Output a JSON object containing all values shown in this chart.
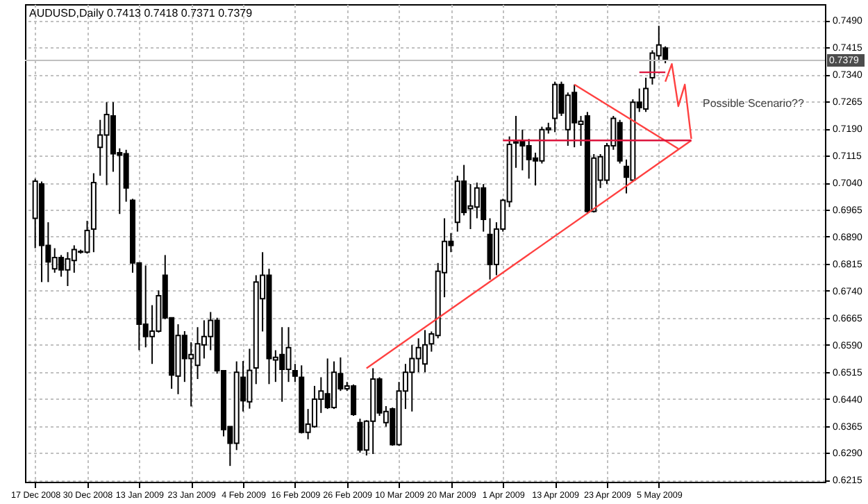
{
  "chart_data": {
    "type": "candlestick",
    "title": "AUDUSD,Daily  0.7413 0.7418 0.7371 0.7379",
    "color": "#000000",
    "categories": [
      "17 Dec 2008",
      null,
      null,
      null,
      null,
      null,
      null,
      null,
      "30 Dec 2008",
      null,
      null,
      null,
      null,
      null,
      null,
      null,
      "13 Jan 2009",
      null,
      null,
      null,
      null,
      null,
      null,
      null,
      "23 Jan 2009",
      null,
      null,
      null,
      null,
      null,
      null,
      null,
      "4 Feb 2009",
      null,
      null,
      null,
      null,
      null,
      null,
      null,
      "16 Feb 2009",
      null,
      null,
      null,
      null,
      null,
      null,
      null,
      "26 Feb 2009",
      null,
      null,
      null,
      null,
      null,
      null,
      null,
      "10 Mar 2009",
      null,
      null,
      null,
      null,
      null,
      null,
      null,
      "20 Mar 2009",
      null,
      null,
      null,
      null,
      null,
      null,
      null,
      "1 Apr 2009",
      null,
      null,
      null,
      null,
      null,
      null,
      null,
      "13 Apr 2009",
      null,
      null,
      null,
      null,
      null,
      null,
      null,
      "23 Apr 2009",
      null,
      null,
      null,
      null,
      null,
      null,
      null,
      "5 May 2009",
      null,
      null,
      null,
      null,
      null,
      null,
      null,
      null,
      null,
      null,
      null,
      null,
      null,
      null,
      null,
      null,
      null,
      null,
      null,
      null,
      null,
      null,
      null,
      null
    ],
    "ohlc": [
      [
        0.6941,
        0.7051,
        0.6858,
        0.7044
      ],
      [
        0.7036,
        0.7043,
        0.6764,
        0.6866
      ],
      [
        0.6866,
        0.693,
        0.6764,
        0.682
      ],
      [
        0.6801,
        0.6858,
        0.679,
        0.6832
      ],
      [
        0.6832,
        0.6839,
        0.6779,
        0.6798
      ],
      [
        0.6798,
        0.6847,
        0.6753,
        0.6828
      ],
      [
        0.6824,
        0.6866,
        0.679,
        0.6854
      ],
      [
        0.6847,
        0.6854,
        0.6843,
        0.6849
      ],
      [
        0.6847,
        0.6934,
        0.6843,
        0.6907
      ],
      [
        0.6911,
        0.7066,
        0.6847,
        0.704
      ],
      [
        0.7138,
        0.7214,
        0.7059,
        0.7172
      ],
      [
        0.7172,
        0.7263,
        0.7033,
        0.7229
      ],
      [
        0.7225,
        0.7263,
        0.707,
        0.712
      ],
      [
        0.7123,
        0.7135,
        0.6953,
        0.7116
      ],
      [
        0.712,
        0.7131,
        0.6987,
        0.7025
      ],
      [
        0.6991,
        0.6995,
        0.679,
        0.6817
      ],
      [
        0.6817,
        0.6817,
        0.6575,
        0.6647
      ],
      [
        0.6647,
        0.681,
        0.6583,
        0.6613
      ],
      [
        0.6613,
        0.67,
        0.6537,
        0.6628
      ],
      [
        0.6628,
        0.6741,
        0.6624,
        0.6726
      ],
      [
        0.6783,
        0.6839,
        0.6661,
        0.6665
      ],
      [
        0.6665,
        0.6665,
        0.6468,
        0.6506
      ],
      [
        0.6503,
        0.6647,
        0.6453,
        0.6616
      ],
      [
        0.6616,
        0.6628,
        0.6487,
        0.6552
      ],
      [
        0.6552,
        0.6597,
        0.6419,
        0.6563
      ],
      [
        0.6533,
        0.6639,
        0.6495,
        0.6593
      ],
      [
        0.659,
        0.6658,
        0.6552,
        0.6613
      ],
      [
        0.6613,
        0.6681,
        0.6575,
        0.6658
      ],
      [
        0.6658,
        0.6665,
        0.651,
        0.6518
      ],
      [
        0.6518,
        0.6518,
        0.6336,
        0.6355
      ],
      [
        0.6363,
        0.6363,
        0.6254,
        0.6317
      ],
      [
        0.6317,
        0.6544,
        0.6298,
        0.6514
      ],
      [
        0.65,
        0.6545,
        0.6405,
        0.6435
      ],
      [
        0.6432,
        0.6579,
        0.6413,
        0.6519
      ],
      [
        0.6526,
        0.6783,
        0.6481,
        0.6764
      ],
      [
        0.6718,
        0.6847,
        0.6627,
        0.6783
      ],
      [
        0.6783,
        0.6801,
        0.6481,
        0.6552
      ],
      [
        0.6548,
        0.6575,
        0.6487,
        0.6555
      ],
      [
        0.6563,
        0.6639,
        0.6432,
        0.6522
      ],
      [
        0.6522,
        0.6639,
        0.6487,
        0.6582
      ],
      [
        0.6518,
        0.6537,
        0.6487,
        0.6503
      ],
      [
        0.65,
        0.6533,
        0.6344,
        0.6347
      ],
      [
        0.6347,
        0.6412,
        0.6328,
        0.637
      ],
      [
        0.6363,
        0.6476,
        0.636,
        0.6439
      ],
      [
        0.6439,
        0.65,
        0.6401,
        0.6462
      ],
      [
        0.6454,
        0.6552,
        0.6412,
        0.6416
      ],
      [
        0.6416,
        0.6544,
        0.6412,
        0.6514
      ],
      [
        0.651,
        0.6555,
        0.6462,
        0.6468
      ],
      [
        0.6468,
        0.6487,
        0.6462,
        0.6476
      ],
      [
        0.6476,
        0.648,
        0.6393,
        0.6397
      ],
      [
        0.6374,
        0.6385,
        0.6291,
        0.6298
      ],
      [
        0.6298,
        0.6381,
        0.6283,
        0.6378
      ],
      [
        0.6378,
        0.6525,
        0.6287,
        0.6495
      ],
      [
        0.6495,
        0.65,
        0.6393,
        0.6401
      ],
      [
        0.6374,
        0.642,
        0.6363,
        0.6405
      ],
      [
        0.6412,
        0.6416,
        0.631,
        0.6313
      ],
      [
        0.6313,
        0.6487,
        0.631,
        0.6462
      ],
      [
        0.6462,
        0.6537,
        0.6412,
        0.6514
      ],
      [
        0.6514,
        0.659,
        0.6405,
        0.6552
      ],
      [
        0.6552,
        0.6608,
        0.6514,
        0.6582
      ],
      [
        0.6537,
        0.6631,
        0.6514,
        0.659
      ],
      [
        0.6593,
        0.6627,
        0.6571,
        0.662
      ],
      [
        0.6616,
        0.6817,
        0.6608,
        0.6794
      ],
      [
        0.679,
        0.6941,
        0.6722,
        0.6877
      ],
      [
        0.6877,
        0.69,
        0.6847,
        0.6866
      ],
      [
        0.693,
        0.7059,
        0.6904,
        0.7044
      ],
      [
        0.7044,
        0.7089,
        0.6949,
        0.6957
      ],
      [
        0.6968,
        0.7036,
        0.6911,
        0.6975
      ],
      [
        0.6972,
        0.704,
        0.6941,
        0.7025
      ],
      [
        0.7025,
        0.7036,
        0.6904,
        0.6938
      ],
      [
        0.6896,
        0.6941,
        0.6771,
        0.6813
      ],
      [
        0.6813,
        0.693,
        0.6783,
        0.6911
      ],
      [
        0.6911,
        0.6995,
        0.6904,
        0.6991
      ],
      [
        0.6987,
        0.7168,
        0.6972,
        0.7146
      ],
      [
        0.7153,
        0.7225,
        0.7081,
        0.715
      ],
      [
        0.7157,
        0.7187,
        0.7074,
        0.7142
      ],
      [
        0.7142,
        0.7161,
        0.7051,
        0.7104
      ],
      [
        0.7108,
        0.7123,
        0.7032,
        0.71
      ],
      [
        0.71,
        0.7195,
        0.7093,
        0.7187
      ],
      [
        0.7187,
        0.7206,
        0.7176,
        0.7191
      ],
      [
        0.7218,
        0.732,
        0.718,
        0.7312
      ],
      [
        0.7312,
        0.732,
        0.7225,
        0.7233
      ],
      [
        0.7187,
        0.729,
        0.7142,
        0.7282
      ],
      [
        0.729,
        0.7312,
        0.7138,
        0.7206
      ],
      [
        0.7202,
        0.7225,
        0.7142,
        0.721
      ],
      [
        0.7225,
        0.7236,
        0.6953,
        0.696
      ],
      [
        0.696,
        0.7119,
        0.6957,
        0.7108
      ],
      [
        0.7047,
        0.7119,
        0.7025,
        0.7112
      ],
      [
        0.7047,
        0.715,
        0.7036,
        0.7142
      ],
      [
        0.7142,
        0.7225,
        0.7131,
        0.7218
      ],
      [
        0.7206,
        0.7214,
        0.7093,
        0.71
      ],
      [
        0.7085,
        0.7104,
        0.701,
        0.7055
      ],
      [
        0.7047,
        0.7271,
        0.7044,
        0.7263
      ],
      [
        0.7263,
        0.7301,
        0.7236,
        0.7248
      ],
      [
        0.7244,
        0.7331,
        0.7236,
        0.7301
      ],
      [
        0.7331,
        0.7407,
        0.7312,
        0.7399
      ],
      [
        0.7392,
        0.7475,
        0.7377,
        0.7422
      ],
      [
        0.7413,
        0.7418,
        0.7371,
        0.7379
      ],
      null,
      null,
      null,
      null,
      null,
      null,
      null,
      null,
      null,
      null,
      null,
      null,
      null,
      null,
      null,
      null,
      null,
      null,
      null,
      null,
      null,
      null,
      null
    ],
    "series": [
      {
        "type": "line",
        "values": [
          null,
          null,
          null,
          null,
          null,
          null,
          null,
          null,
          null,
          null,
          null,
          null,
          null,
          null,
          null,
          null,
          null,
          null,
          null,
          null,
          null,
          null,
          null,
          null,
          null,
          null,
          null,
          null,
          null,
          null,
          null,
          null,
          null,
          null,
          null,
          null,
          null,
          null,
          null,
          null,
          null,
          null,
          null,
          null,
          null,
          null,
          null,
          null,
          null,
          null,
          null,
          0.6525,
          null,
          null,
          null,
          null,
          null,
          null,
          null,
          null,
          null,
          null,
          null,
          null,
          null,
          null,
          null,
          null,
          null,
          null,
          null,
          null,
          null,
          null,
          null,
          null,
          null,
          null,
          null,
          null,
          null,
          null,
          null,
          null,
          null,
          null,
          null,
          null,
          null,
          null,
          null,
          null,
          null,
          null,
          null,
          null,
          null,
          null,
          null,
          null,
          null,
          0.7157,
          null,
          null,
          null,
          null,
          null,
          null,
          null,
          null,
          null,
          null,
          null,
          null,
          null,
          null,
          null,
          null,
          null,
          null,
          null
        ],
        "color": "#ff4040"
      },
      {
        "type": "line",
        "values": [
          null,
          null,
          null,
          null,
          null,
          null,
          null,
          null,
          null,
          null,
          null,
          null,
          null,
          null,
          null,
          null,
          null,
          null,
          null,
          null,
          null,
          null,
          null,
          null,
          null,
          null,
          null,
          null,
          null,
          null,
          null,
          null,
          null,
          null,
          null,
          null,
          null,
          null,
          null,
          null,
          null,
          null,
          null,
          null,
          null,
          null,
          null,
          null,
          null,
          null,
          null,
          null,
          null,
          null,
          null,
          null,
          null,
          null,
          null,
          null,
          null,
          null,
          null,
          null,
          null,
          null,
          null,
          null,
          null,
          null,
          null,
          null,
          null,
          null,
          null,
          null,
          null,
          null,
          null,
          null,
          null,
          null,
          null,
          0.7312,
          null,
          null,
          null,
          null,
          null,
          null,
          null,
          null,
          null,
          null,
          null,
          null,
          null,
          null,
          null,
          0.7134,
          null,
          null,
          null,
          null,
          null,
          null,
          null,
          null,
          null,
          null,
          null,
          null,
          null,
          null,
          null,
          null,
          null,
          null,
          null,
          null,
          null
        ],
        "color": "#ff4040"
      },
      {
        "type": "line",
        "values": [
          null,
          null,
          null,
          null,
          null,
          null,
          null,
          null,
          null,
          null,
          null,
          null,
          null,
          null,
          null,
          null,
          null,
          null,
          null,
          null,
          null,
          null,
          null,
          null,
          null,
          null,
          null,
          null,
          null,
          null,
          null,
          null,
          null,
          null,
          null,
          null,
          null,
          null,
          null,
          null,
          null,
          null,
          null,
          null,
          null,
          null,
          null,
          null,
          null,
          null,
          null,
          null,
          null,
          null,
          null,
          null,
          null,
          null,
          null,
          null,
          null,
          null,
          null,
          null,
          null,
          null,
          null,
          null,
          null,
          null,
          null,
          null,
          0.7157,
          null,
          null,
          null,
          null,
          null,
          null,
          null,
          null,
          null,
          null,
          null,
          null,
          null,
          null,
          null,
          null,
          null,
          null,
          null,
          null,
          null,
          null,
          null,
          null,
          null,
          null,
          null,
          null,
          0.7157,
          null,
          null,
          null,
          null,
          null,
          null,
          null,
          null,
          null,
          null,
          null,
          null,
          null,
          null,
          null,
          null,
          null,
          null,
          null
        ],
        "color": "#dc143c"
      },
      {
        "type": "line",
        "values": [
          null,
          null,
          null,
          null,
          null,
          null,
          null,
          null,
          null,
          null,
          null,
          null,
          null,
          null,
          null,
          null,
          null,
          null,
          null,
          null,
          null,
          null,
          null,
          null,
          null,
          null,
          null,
          null,
          null,
          null,
          null,
          null,
          null,
          null,
          null,
          null,
          null,
          null,
          null,
          null,
          null,
          null,
          null,
          null,
          null,
          null,
          null,
          null,
          null,
          null,
          null,
          null,
          null,
          null,
          null,
          null,
          null,
          null,
          null,
          null,
          null,
          null,
          null,
          null,
          null,
          null,
          null,
          null,
          null,
          null,
          null,
          null,
          null,
          null,
          null,
          null,
          null,
          null,
          null,
          null,
          null,
          null,
          null,
          null,
          null,
          null,
          null,
          null,
          null,
          null,
          null,
          null,
          null,
          0.7346,
          null,
          null,
          null,
          0.7346,
          null,
          null,
          null,
          null,
          null,
          null,
          null,
          null,
          null,
          null,
          null,
          null,
          null,
          null,
          null,
          null,
          null,
          null,
          null,
          null,
          null,
          null,
          null
        ],
        "color": "#dc143c"
      },
      {
        "type": "line",
        "values": [
          null,
          null,
          null,
          null,
          null,
          null,
          null,
          null,
          null,
          null,
          null,
          null,
          null,
          null,
          null,
          null,
          null,
          null,
          null,
          null,
          null,
          null,
          null,
          null,
          null,
          null,
          null,
          null,
          null,
          null,
          null,
          null,
          null,
          null,
          null,
          null,
          null,
          null,
          null,
          null,
          null,
          null,
          null,
          null,
          null,
          null,
          null,
          null,
          null,
          null,
          null,
          null,
          null,
          null,
          null,
          null,
          null,
          null,
          null,
          null,
          null,
          null,
          null,
          null,
          null,
          null,
          null,
          null,
          null,
          null,
          null,
          null,
          null,
          null,
          null,
          null,
          null,
          null,
          null,
          null,
          null,
          null,
          null,
          null,
          null,
          null,
          null,
          null,
          null,
          null,
          null,
          null,
          null,
          null,
          null,
          null,
          null,
          0.732,
          0.7369,
          0.7252,
          0.7312,
          0.7161,
          null,
          null,
          null,
          null,
          null,
          null,
          null,
          null,
          null,
          null,
          null,
          null,
          null,
          null,
          null,
          null,
          null,
          null,
          null
        ],
        "color": "#ff4040"
      }
    ],
    "ylim": [
      0.621,
      0.7535
    ],
    "yticks": [
      0.6215,
      {
        "value": 0.629,
        "label": "0.6290"
      },
      0.6365,
      {
        "value": 0.644,
        "label": "0.6440"
      },
      0.6515,
      {
        "value": 0.659,
        "label": "0.6590"
      },
      0.6665,
      {
        "value": 0.674,
        "label": "0.6740"
      },
      0.6815,
      {
        "value": 0.689,
        "label": "0.6890"
      },
      0.6965,
      {
        "value": 0.704,
        "label": "0.7040"
      },
      0.7115,
      {
        "value": 0.719,
        "label": "0.7190"
      },
      0.7265,
      {
        "value": 0.734,
        "label": "0.7340"
      },
      0.7415,
      {
        "value": 0.749,
        "label": "0.7490"
      }
    ],
    "grid": true,
    "ref_lines": [
      {
        "axis": "y",
        "value": 0.7379,
        "label": "0.7379",
        "color": "#c0c0c0"
      }
    ],
    "annotations": [
      "Possible Scenario??"
    ]
  }
}
